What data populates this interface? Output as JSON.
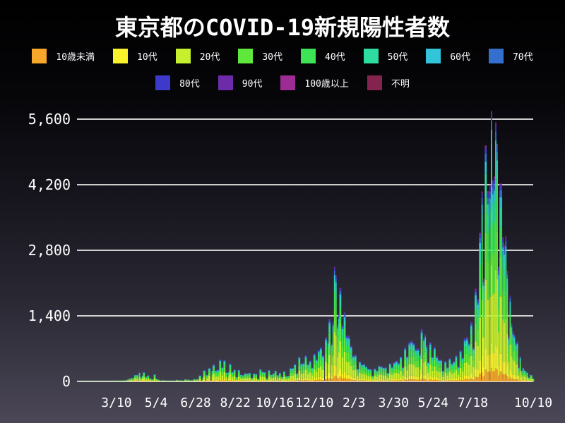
{
  "title": "東京都のCOVID-19新規陽性者数",
  "colors": {
    "background_top": "#000000",
    "background_bottom": "#4b4757",
    "grid": "#e9e9e7",
    "text": "#ffffff"
  },
  "legend": {
    "rows": [
      [
        {
          "label": "10歳未満",
          "color": "#f7a82a"
        },
        {
          "label": "10代",
          "color": "#faf32b"
        },
        {
          "label": "20代",
          "color": "#c6ef2e"
        },
        {
          "label": "30代",
          "color": "#5fe83b"
        },
        {
          "label": "40代",
          "color": "#3ce455"
        },
        {
          "label": "50代",
          "color": "#2edca0"
        },
        {
          "label": "60代",
          "color": "#32c5da"
        },
        {
          "label": "70代",
          "color": "#346fce"
        }
      ],
      [
        {
          "label": "80代",
          "color": "#3d3aca"
        },
        {
          "label": "90代",
          "color": "#6d2ba9"
        },
        {
          "label": "100歳以上",
          "color": "#9d2c94"
        },
        {
          "label": "不明",
          "color": "#84234e"
        }
      ]
    ]
  },
  "chart_data": {
    "type": "area",
    "stacked": true,
    "title": "東京都のCOVID-19新規陽性者数",
    "xlabel": "",
    "ylabel": "",
    "ylim": [
      0,
      5600
    ],
    "grid": "horizontal",
    "legend_position": "top",
    "x_domain": [
      "2020-01-18",
      "2021-10-10"
    ],
    "y_ticks": [
      {
        "value": 0,
        "label": "0"
      },
      {
        "value": 1400,
        "label": "1,400"
      },
      {
        "value": 2800,
        "label": "2,800"
      },
      {
        "value": 4200,
        "label": "4,200"
      },
      {
        "value": 5600,
        "label": "5,600"
      }
    ],
    "x_ticks": [
      {
        "date": "2020-03-10",
        "label": "3/10"
      },
      {
        "date": "2020-05-04",
        "label": "5/4"
      },
      {
        "date": "2020-06-28",
        "label": "6/28"
      },
      {
        "date": "2020-08-22",
        "label": "8/22"
      },
      {
        "date": "2020-10-16",
        "label": "10/16"
      },
      {
        "date": "2020-12-10",
        "label": "12/10"
      },
      {
        "date": "2021-02-03",
        "label": "2/3"
      },
      {
        "date": "2021-03-30",
        "label": "3/30"
      },
      {
        "date": "2021-05-24",
        "label": "5/24"
      },
      {
        "date": "2021-07-18",
        "label": "7/18"
      },
      {
        "date": "2021-10-10",
        "label": "10/10"
      }
    ],
    "groups": [
      {
        "name": "10歳未満",
        "color": "#f7a82a",
        "approx_share": 0.05
      },
      {
        "name": "10代",
        "color": "#faf32b",
        "approx_share": 0.09
      },
      {
        "name": "20代",
        "color": "#c6ef2e",
        "approx_share": 0.29
      },
      {
        "name": "30代",
        "color": "#5fe83b",
        "approx_share": 0.2
      },
      {
        "name": "40代",
        "color": "#3ce455",
        "approx_share": 0.15
      },
      {
        "name": "50代",
        "color": "#2edca0",
        "approx_share": 0.1
      },
      {
        "name": "60代",
        "color": "#32c5da",
        "approx_share": 0.05
      },
      {
        "name": "70代",
        "color": "#346fce",
        "approx_share": 0.035
      },
      {
        "name": "80代",
        "color": "#3d3aca",
        "approx_share": 0.02
      },
      {
        "name": "90代",
        "color": "#6d2ba9",
        "approx_share": 0.01
      },
      {
        "name": "100歳以上",
        "color": "#9d2c94",
        "approx_share": 0.003
      },
      {
        "name": "不明",
        "color": "#84234e",
        "approx_share": 0.002
      }
    ],
    "points": [
      [
        "2020-01-24",
        1
      ],
      [
        "2020-02-01",
        2
      ],
      [
        "2020-02-08",
        1
      ],
      [
        "2020-02-14",
        2
      ],
      [
        "2020-02-21",
        3
      ],
      [
        "2020-02-28",
        2
      ],
      [
        "2020-03-05",
        6
      ],
      [
        "2020-03-10",
        18
      ],
      [
        "2020-03-14",
        23
      ],
      [
        "2020-03-18",
        9
      ],
      [
        "2020-03-21",
        26
      ],
      [
        "2020-03-25",
        41
      ],
      [
        "2020-03-28",
        63
      ],
      [
        "2020-03-31",
        78
      ],
      [
        "2020-04-03",
        89
      ],
      [
        "2020-04-05",
        143
      ],
      [
        "2020-04-08",
        144
      ],
      [
        "2020-04-11",
        197
      ],
      [
        "2020-04-13",
        91
      ],
      [
        "2020-04-15",
        127
      ],
      [
        "2020-04-17",
        201
      ],
      [
        "2020-04-20",
        102
      ],
      [
        "2020-04-23",
        134
      ],
      [
        "2020-04-26",
        72
      ],
      [
        "2020-04-29",
        47
      ],
      [
        "2020-05-02",
        154
      ],
      [
        "2020-05-05",
        58
      ],
      [
        "2020-05-08",
        39
      ],
      [
        "2020-05-11",
        15
      ],
      [
        "2020-05-14",
        30
      ],
      [
        "2020-05-17",
        5
      ],
      [
        "2020-05-21",
        11
      ],
      [
        "2020-05-25",
        8
      ],
      [
        "2020-05-29",
        22
      ],
      [
        "2020-06-02",
        34
      ],
      [
        "2020-06-06",
        26
      ],
      [
        "2020-06-10",
        18
      ],
      [
        "2020-06-14",
        47
      ],
      [
        "2020-06-18",
        41
      ],
      [
        "2020-06-22",
        29
      ],
      [
        "2020-06-26",
        54
      ],
      [
        "2020-06-30",
        54
      ],
      [
        "2020-07-04",
        131
      ],
      [
        "2020-07-08",
        75
      ],
      [
        "2020-07-10",
        243
      ],
      [
        "2020-07-14",
        143
      ],
      [
        "2020-07-17",
        293
      ],
      [
        "2020-07-21",
        237
      ],
      [
        "2020-07-23",
        366
      ],
      [
        "2020-07-26",
        239
      ],
      [
        "2020-07-29",
        250
      ],
      [
        "2020-08-01",
        472
      ],
      [
        "2020-08-04",
        309
      ],
      [
        "2020-08-07",
        462
      ],
      [
        "2020-08-10",
        197
      ],
      [
        "2020-08-13",
        206
      ],
      [
        "2020-08-15",
        385
      ],
      [
        "2020-08-18",
        207
      ],
      [
        "2020-08-21",
        258
      ],
      [
        "2020-08-24",
        95
      ],
      [
        "2020-08-27",
        250
      ],
      [
        "2020-08-30",
        148
      ],
      [
        "2020-09-02",
        141
      ],
      [
        "2020-09-05",
        181
      ],
      [
        "2020-09-08",
        170
      ],
      [
        "2020-09-11",
        187
      ],
      [
        "2020-09-14",
        80
      ],
      [
        "2020-09-17",
        171
      ],
      [
        "2020-09-20",
        162
      ],
      [
        "2020-09-23",
        59
      ],
      [
        "2020-09-26",
        270
      ],
      [
        "2020-09-29",
        212
      ],
      [
        "2020-10-02",
        207
      ],
      [
        "2020-10-05",
        66
      ],
      [
        "2020-10-08",
        248
      ],
      [
        "2020-10-11",
        146
      ],
      [
        "2020-10-14",
        177
      ],
      [
        "2020-10-17",
        235
      ],
      [
        "2020-10-20",
        139
      ],
      [
        "2020-10-23",
        186
      ],
      [
        "2020-10-26",
        102
      ],
      [
        "2020-10-29",
        221
      ],
      [
        "2020-11-01",
        116
      ],
      [
        "2020-11-04",
        122
      ],
      [
        "2020-11-07",
        294
      ],
      [
        "2020-11-10",
        293
      ],
      [
        "2020-11-13",
        374
      ],
      [
        "2020-11-16",
        180
      ],
      [
        "2020-11-19",
        534
      ],
      [
        "2020-11-22",
        391
      ],
      [
        "2020-11-25",
        401
      ],
      [
        "2020-11-28",
        561
      ],
      [
        "2020-12-01",
        372
      ],
      [
        "2020-12-04",
        449
      ],
      [
        "2020-12-07",
        299
      ],
      [
        "2020-12-10",
        602
      ],
      [
        "2020-12-13",
        480
      ],
      [
        "2020-12-16",
        678
      ],
      [
        "2020-12-19",
        736
      ],
      [
        "2020-12-22",
        563
      ],
      [
        "2020-12-26",
        949
      ],
      [
        "2020-12-29",
        856
      ],
      [
        "2020-12-31",
        1337
      ],
      [
        "2021-01-03",
        816
      ],
      [
        "2021-01-05",
        1278
      ],
      [
        "2021-01-07",
        2447
      ],
      [
        "2021-01-09",
        2268
      ],
      [
        "2021-01-11",
        1219
      ],
      [
        "2021-01-13",
        1433
      ],
      [
        "2021-01-15",
        2001
      ],
      [
        "2021-01-18",
        1204
      ],
      [
        "2021-01-21",
        1471
      ],
      [
        "2021-01-24",
        986
      ],
      [
        "2021-01-27",
        973
      ],
      [
        "2021-01-30",
        769
      ],
      [
        "2021-02-02",
        556
      ],
      [
        "2021-02-05",
        577
      ],
      [
        "2021-02-08",
        276
      ],
      [
        "2021-02-11",
        434
      ],
      [
        "2021-02-14",
        371
      ],
      [
        "2021-02-17",
        378
      ],
      [
        "2021-02-20",
        327
      ],
      [
        "2021-02-23",
        275
      ],
      [
        "2021-02-26",
        270
      ],
      [
        "2021-03-01",
        121
      ],
      [
        "2021-03-04",
        279
      ],
      [
        "2021-03-07",
        237
      ],
      [
        "2021-03-10",
        340
      ],
      [
        "2021-03-13",
        330
      ],
      [
        "2021-03-16",
        300
      ],
      [
        "2021-03-19",
        303
      ],
      [
        "2021-03-22",
        187
      ],
      [
        "2021-03-25",
        394
      ],
      [
        "2021-03-28",
        313
      ],
      [
        "2021-03-31",
        414
      ],
      [
        "2021-04-03",
        446
      ],
      [
        "2021-04-06",
        399
      ],
      [
        "2021-04-09",
        537
      ],
      [
        "2021-04-12",
        306
      ],
      [
        "2021-04-15",
        729
      ],
      [
        "2021-04-18",
        543
      ],
      [
        "2021-04-21",
        843
      ],
      [
        "2021-04-24",
        876
      ],
      [
        "2021-04-27",
        828
      ],
      [
        "2021-04-30",
        698
      ],
      [
        "2021-05-03",
        708
      ],
      [
        "2021-05-06",
        591
      ],
      [
        "2021-05-08",
        1121
      ],
      [
        "2021-05-11",
        925
      ],
      [
        "2021-05-13",
        1010
      ],
      [
        "2021-05-15",
        772
      ],
      [
        "2021-05-17",
        419
      ],
      [
        "2021-05-20",
        843
      ],
      [
        "2021-05-23",
        535
      ],
      [
        "2021-05-26",
        743
      ],
      [
        "2021-05-29",
        539
      ],
      [
        "2021-06-01",
        471
      ],
      [
        "2021-06-04",
        472
      ],
      [
        "2021-06-07",
        235
      ],
      [
        "2021-06-10",
        439
      ],
      [
        "2021-06-13",
        304
      ],
      [
        "2021-06-16",
        501
      ],
      [
        "2021-06-19",
        388
      ],
      [
        "2021-06-22",
        435
      ],
      [
        "2021-06-25",
        562
      ],
      [
        "2021-06-28",
        317
      ],
      [
        "2021-07-01",
        673
      ],
      [
        "2021-07-04",
        518
      ],
      [
        "2021-07-07",
        920
      ],
      [
        "2021-07-10",
        950
      ],
      [
        "2021-07-13",
        830
      ],
      [
        "2021-07-16",
        1271
      ],
      [
        "2021-07-19",
        727
      ],
      [
        "2021-07-22",
        1979
      ],
      [
        "2021-07-25",
        1763
      ],
      [
        "2021-07-28",
        3177
      ],
      [
        "2021-07-31",
        4058
      ],
      [
        "2021-08-02",
        2195
      ],
      [
        "2021-08-05",
        5042
      ],
      [
        "2021-08-08",
        4066
      ],
      [
        "2021-08-11",
        4200
      ],
      [
        "2021-08-13",
        5773
      ],
      [
        "2021-08-15",
        4295
      ],
      [
        "2021-08-17",
        4377
      ],
      [
        "2021-08-19",
        5534
      ],
      [
        "2021-08-21",
        5074
      ],
      [
        "2021-08-23",
        2447
      ],
      [
        "2021-08-25",
        4228
      ],
      [
        "2021-08-27",
        4227
      ],
      [
        "2021-08-29",
        3081
      ],
      [
        "2021-08-31",
        2909
      ],
      [
        "2021-09-02",
        3099
      ],
      [
        "2021-09-04",
        2362
      ],
      [
        "2021-09-06",
        968
      ],
      [
        "2021-09-08",
        1834
      ],
      [
        "2021-09-10",
        1242
      ],
      [
        "2021-09-12",
        1067
      ],
      [
        "2021-09-14",
        1004
      ],
      [
        "2021-09-16",
        831
      ],
      [
        "2021-09-18",
        862
      ],
      [
        "2021-09-20",
        302
      ],
      [
        "2021-09-22",
        537
      ],
      [
        "2021-09-24",
        235
      ],
      [
        "2021-09-26",
        299
      ],
      [
        "2021-09-28",
        248
      ],
      [
        "2021-09-30",
        218
      ],
      [
        "2021-10-02",
        196
      ],
      [
        "2021-10-04",
        87
      ],
      [
        "2021-10-06",
        149
      ],
      [
        "2021-10-08",
        138
      ],
      [
        "2021-10-10",
        60
      ]
    ]
  }
}
